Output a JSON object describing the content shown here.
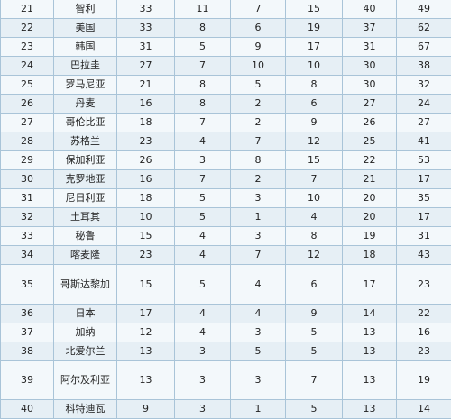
{
  "table": {
    "rows": [
      {
        "rank": "21",
        "country": "智利",
        "c1": "33",
        "c2": "11",
        "c3": "7",
        "c4": "15",
        "c5": "40",
        "c6": "49"
      },
      {
        "rank": "22",
        "country": "美国",
        "c1": "33",
        "c2": "8",
        "c3": "6",
        "c4": "19",
        "c5": "37",
        "c6": "62"
      },
      {
        "rank": "23",
        "country": "韩国",
        "c1": "31",
        "c2": "5",
        "c3": "9",
        "c4": "17",
        "c5": "31",
        "c6": "67"
      },
      {
        "rank": "24",
        "country": "巴拉圭",
        "c1": "27",
        "c2": "7",
        "c3": "10",
        "c4": "10",
        "c5": "30",
        "c6": "38"
      },
      {
        "rank": "25",
        "country": "罗马尼亚",
        "c1": "21",
        "c2": "8",
        "c3": "5",
        "c4": "8",
        "c5": "30",
        "c6": "32"
      },
      {
        "rank": "26",
        "country": "丹麦",
        "c1": "16",
        "c2": "8",
        "c3": "2",
        "c4": "6",
        "c5": "27",
        "c6": "24"
      },
      {
        "rank": "27",
        "country": "哥伦比亚",
        "c1": "18",
        "c2": "7",
        "c3": "2",
        "c4": "9",
        "c5": "26",
        "c6": "27"
      },
      {
        "rank": "28",
        "country": "苏格兰",
        "c1": "23",
        "c2": "4",
        "c3": "7",
        "c4": "12",
        "c5": "25",
        "c6": "41"
      },
      {
        "rank": "29",
        "country": "保加利亚",
        "c1": "26",
        "c2": "3",
        "c3": "8",
        "c4": "15",
        "c5": "22",
        "c6": "53"
      },
      {
        "rank": "30",
        "country": "克罗地亚",
        "c1": "16",
        "c2": "7",
        "c3": "2",
        "c4": "7",
        "c5": "21",
        "c6": "17"
      },
      {
        "rank": "31",
        "country": "尼日利亚",
        "c1": "18",
        "c2": "5",
        "c3": "3",
        "c4": "10",
        "c5": "20",
        "c6": "35"
      },
      {
        "rank": "32",
        "country": "土耳其",
        "c1": "10",
        "c2": "5",
        "c3": "1",
        "c4": "4",
        "c5": "20",
        "c6": "17"
      },
      {
        "rank": "33",
        "country": "秘鲁",
        "c1": "15",
        "c2": "4",
        "c3": "3",
        "c4": "8",
        "c5": "19",
        "c6": "31"
      },
      {
        "rank": "34",
        "country": "喀麦隆",
        "c1": "23",
        "c2": "4",
        "c3": "7",
        "c4": "12",
        "c5": "18",
        "c6": "43"
      },
      {
        "rank": "35",
        "country": "哥斯达黎加",
        "c1": "15",
        "c2": "5",
        "c3": "4",
        "c4": "6",
        "c5": "17",
        "c6": "23"
      },
      {
        "rank": "36",
        "country": "日本",
        "c1": "17",
        "c2": "4",
        "c3": "4",
        "c4": "9",
        "c5": "14",
        "c6": "22"
      },
      {
        "rank": "37",
        "country": "加纳",
        "c1": "12",
        "c2": "4",
        "c3": "3",
        "c4": "5",
        "c5": "13",
        "c6": "16"
      },
      {
        "rank": "38",
        "country": "北爱尔兰",
        "c1": "13",
        "c2": "3",
        "c3": "5",
        "c4": "5",
        "c5": "13",
        "c6": "23"
      },
      {
        "rank": "39",
        "country": "阿尔及利亚",
        "c1": "13",
        "c2": "3",
        "c3": "3",
        "c4": "7",
        "c5": "13",
        "c6": "19"
      },
      {
        "rank": "40",
        "country": "科特迪瓦",
        "c1": "9",
        "c2": "3",
        "c3": "1",
        "c4": "5",
        "c5": "13",
        "c6": "14"
      }
    ]
  }
}
